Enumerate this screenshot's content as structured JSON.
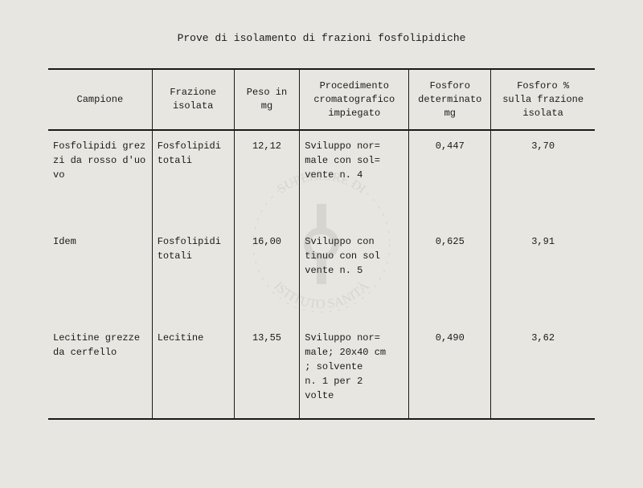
{
  "title": "Prove di isolamento di frazioni fosfolipidiche",
  "headers": {
    "campione": "Campione",
    "frazione": "Frazione\nisolata",
    "peso": "Peso in\nmg",
    "procedimento": "Procedimento\ncromatografico\nimpiegato",
    "fosforo_det": "Fosforo\ndeterminato\nmg",
    "fosforo_pct": "Fosforo %\nsulla frazione\nisolata"
  },
  "rows": [
    {
      "campione": "Fosfolipidi grez\nzi da rosso d'uo\nvo",
      "frazione": "Fosfolipidi\ntotali",
      "peso": "12,12",
      "procedimento": "Sviluppo nor=\nmale con sol=\nvente n. 4",
      "fosforo_det": "0,447",
      "fosforo_pct": "3,70"
    },
    {
      "campione": "Idem",
      "frazione": "Fosfolipidi\ntotali",
      "peso": "16,00",
      "procedimento": "Sviluppo con\ntinuo con sol\nvente  n. 5",
      "fosforo_det": "0,625",
      "fosforo_pct": "3,91"
    },
    {
      "campione": "Lecitine grezze\nda cerfello",
      "frazione": "Lecitine",
      "peso": "13,55",
      "procedimento": "Sviluppo nor=\nmale; 20x40 cm\n; solvente\nn. 1 per 2\nvolte",
      "fosforo_det": "0,490",
      "fosforo_pct": "3,62"
    }
  ],
  "colors": {
    "background": "#e8e6e0",
    "text": "#1a1a1a",
    "border": "#1a1a1a"
  },
  "watermark_text": "ISTITUTO SUPERIORE DI SANITÀ"
}
